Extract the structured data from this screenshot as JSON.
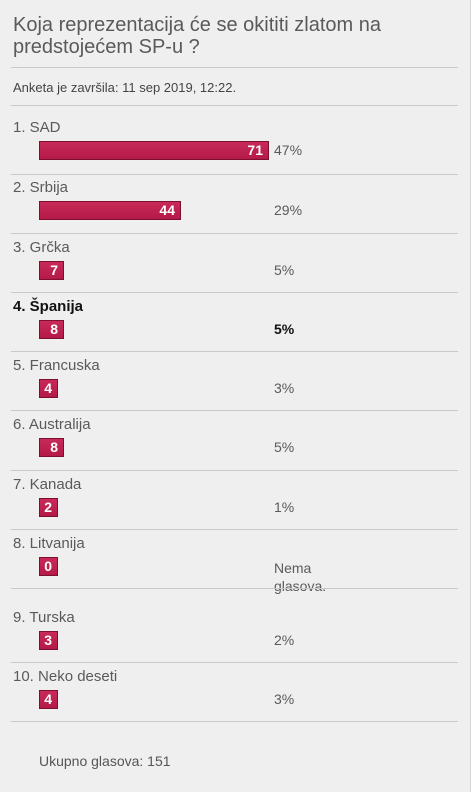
{
  "poll": {
    "question": "Koja reprezentacija će se okititi zlatom na predstojećem SP-u ?",
    "ended": "Anketa je završila: 11 sep 2019, 12:22.",
    "total": "Ukupno glasova: 151",
    "bar_color": "#c0214f",
    "options": [
      {
        "label": "1. SAD",
        "votes": "71",
        "percent": "47%",
        "share": 0.47
      },
      {
        "label": "2. Srbija",
        "votes": "44",
        "percent": "29%",
        "share": 0.29
      },
      {
        "label": "3. Grčka",
        "votes": "7",
        "percent": "5%",
        "share": 0.05
      },
      {
        "label": "4. Španija",
        "votes": "8",
        "percent": "5%",
        "share": 0.05,
        "selected": true
      },
      {
        "label": "5. Francuska",
        "votes": "4",
        "percent": "3%",
        "share": 0.03
      },
      {
        "label": "6. Australija",
        "votes": "8",
        "percent": "5%",
        "share": 0.05
      },
      {
        "label": "7. Kanada",
        "votes": "2",
        "percent": "1%",
        "share": 0.01
      },
      {
        "label": "8. Litvanija",
        "votes": "0",
        "percent": "Nema glasova.",
        "share": 0
      },
      {
        "label": "9. Turska",
        "votes": "3",
        "percent": "2%",
        "share": 0.02
      },
      {
        "label": "10. Neko deseti",
        "votes": "4",
        "percent": "3%",
        "share": 0.03
      }
    ]
  }
}
